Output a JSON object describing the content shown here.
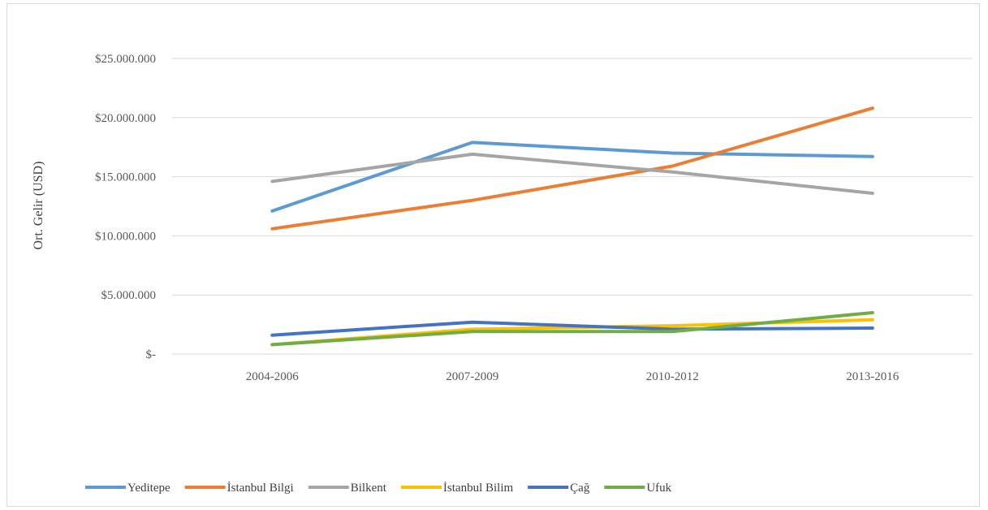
{
  "chart_data": {
    "type": "line",
    "ylabel": "Ort. Gelir (USD)",
    "categories": [
      "2004-2006",
      "2007-2009",
      "2010-2012",
      "2013-2016"
    ],
    "y_ticks": [
      0,
      5000000,
      10000000,
      15000000,
      20000000,
      25000000
    ],
    "y_tick_labels": [
      "$-",
      "$5.000.000",
      "$10.000.000",
      "$15.000.000",
      "$20.000.000",
      "$25.000.000"
    ],
    "ylim": [
      0,
      25000000
    ],
    "grid": true,
    "legend_position": "bottom",
    "series": [
      {
        "name": "Yeditepe",
        "color": "#5B9BD5",
        "values": [
          12100000,
          17900000,
          17000000,
          16700000
        ]
      },
      {
        "name": "İstanbul Bilgi",
        "color": "#ED7D31",
        "values": [
          10600000,
          13000000,
          15900000,
          20800000
        ]
      },
      {
        "name": "Bilkent",
        "color": "#A5A5A5",
        "values": [
          14600000,
          16900000,
          15400000,
          13600000
        ]
      },
      {
        "name": "İstanbul Bilim",
        "color": "#FFC000",
        "values": [
          800000,
          2100000,
          2400000,
          2900000
        ]
      },
      {
        "name": "Çağ",
        "color": "#4472C4",
        "values": [
          1600000,
          2700000,
          2100000,
          2200000
        ]
      },
      {
        "name": "Ufuk",
        "color": "#70AD47",
        "values": [
          800000,
          1900000,
          1900000,
          3500000
        ]
      }
    ]
  }
}
